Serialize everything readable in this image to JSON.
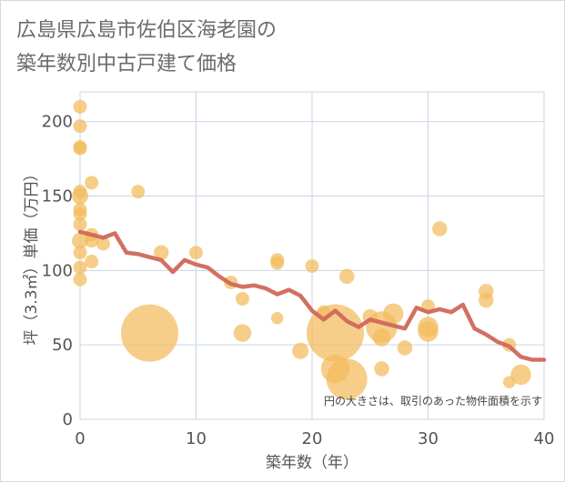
{
  "title": "広島県広島市佐伯区海老園の\n築年数別中古戸建て価格",
  "colors": {
    "bubble": "#f2bb5c",
    "line": "#d0685a",
    "grid": "#c9d6e3",
    "frame": "#d8d8d8"
  },
  "chart_data": {
    "type": "scatter",
    "xlabel": "築年数（年）",
    "ylabel": "坪（3.3㎡）単価（万円）",
    "xlim": [
      0,
      40
    ],
    "ylim": [
      0,
      220
    ],
    "xticks": [
      0,
      10,
      20,
      30,
      40
    ],
    "yticks": [
      0,
      50,
      100,
      150,
      200
    ],
    "grid": true,
    "annotation": "円の大きさは、取引のあった物件面積を示す",
    "scatter_points": [
      {
        "x": 0,
        "y": 210,
        "s": 1
      },
      {
        "x": 0,
        "y": 197,
        "s": 1
      },
      {
        "x": 0,
        "y": 183,
        "s": 1
      },
      {
        "x": 0,
        "y": 182,
        "s": 1
      },
      {
        "x": 0,
        "y": 153,
        "s": 1
      },
      {
        "x": 0,
        "y": 150,
        "s": 1.2
      },
      {
        "x": 0,
        "y": 141,
        "s": 1
      },
      {
        "x": 0,
        "y": 138,
        "s": 1
      },
      {
        "x": 0,
        "y": 131,
        "s": 1
      },
      {
        "x": 0,
        "y": 120,
        "s": 1.2
      },
      {
        "x": 0,
        "y": 112,
        "s": 1
      },
      {
        "x": 0,
        "y": 102,
        "s": 1
      },
      {
        "x": 0,
        "y": 94,
        "s": 1
      },
      {
        "x": 1,
        "y": 159,
        "s": 1
      },
      {
        "x": 1,
        "y": 124,
        "s": 1
      },
      {
        "x": 1,
        "y": 120,
        "s": 1
      },
      {
        "x": 1,
        "y": 106,
        "s": 1
      },
      {
        "x": 2,
        "y": 118,
        "s": 1
      },
      {
        "x": 5,
        "y": 153,
        "s": 1
      },
      {
        "x": 6,
        "y": 58,
        "s": 4.2
      },
      {
        "x": 7,
        "y": 112,
        "s": 1.1
      },
      {
        "x": 10,
        "y": 112,
        "s": 1
      },
      {
        "x": 13,
        "y": 92,
        "s": 1
      },
      {
        "x": 14,
        "y": 81,
        "s": 1
      },
      {
        "x": 14,
        "y": 58,
        "s": 1.3
      },
      {
        "x": 17,
        "y": 107,
        "s": 1
      },
      {
        "x": 17,
        "y": 105,
        "s": 1
      },
      {
        "x": 17,
        "y": 68,
        "s": 0.9
      },
      {
        "x": 19,
        "y": 46,
        "s": 1.2
      },
      {
        "x": 20,
        "y": 103,
        "s": 1
      },
      {
        "x": 21,
        "y": 72,
        "s": 1
      },
      {
        "x": 22,
        "y": 58,
        "s": 4.2
      },
      {
        "x": 22,
        "y": 34,
        "s": 2.1
      },
      {
        "x": 23,
        "y": 27,
        "s": 3.0
      },
      {
        "x": 23,
        "y": 96,
        "s": 1.1
      },
      {
        "x": 25,
        "y": 69,
        "s": 1.1
      },
      {
        "x": 26,
        "y": 62,
        "s": 2.3
      },
      {
        "x": 26,
        "y": 55,
        "s": 1.3
      },
      {
        "x": 26,
        "y": 34,
        "s": 1.1
      },
      {
        "x": 27,
        "y": 71,
        "s": 1.5
      },
      {
        "x": 28,
        "y": 48,
        "s": 1.1
      },
      {
        "x": 30,
        "y": 76,
        "s": 1
      },
      {
        "x": 30,
        "y": 62,
        "s": 1.5
      },
      {
        "x": 30,
        "y": 59,
        "s": 1.5
      },
      {
        "x": 31,
        "y": 128,
        "s": 1.1
      },
      {
        "x": 35,
        "y": 86,
        "s": 1.1
      },
      {
        "x": 35,
        "y": 80,
        "s": 1.1
      },
      {
        "x": 37,
        "y": 50,
        "s": 1
      },
      {
        "x": 37,
        "y": 25,
        "s": 0.9
      },
      {
        "x": 38,
        "y": 30,
        "s": 1.5
      }
    ],
    "line_series": {
      "x": [
        0,
        1,
        2,
        3,
        4,
        5,
        6,
        7,
        8,
        9,
        10,
        11,
        12,
        13,
        14,
        15,
        16,
        17,
        18,
        19,
        20,
        21,
        22,
        23,
        24,
        25,
        26,
        27,
        28,
        29,
        30,
        31,
        32,
        33,
        34,
        35,
        36,
        37,
        38,
        39,
        40
      ],
      "y": [
        126,
        124,
        122,
        125,
        112,
        111,
        109,
        107,
        99,
        107,
        104,
        102,
        96,
        91,
        89,
        90,
        88,
        84,
        87,
        83,
        73,
        67,
        73,
        66,
        62,
        67,
        65,
        63,
        61,
        75,
        72,
        74,
        72,
        77,
        61,
        57,
        52,
        49,
        42,
        40,
        40
      ]
    }
  }
}
